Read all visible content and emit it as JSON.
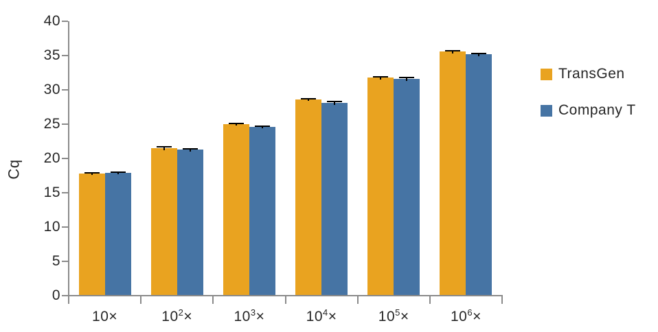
{
  "figure": {
    "background_color": "#ffffff",
    "axis_color": "#8a8a8a",
    "text_color": "#262626",
    "error_bar_color": "#000000"
  },
  "chart_data": {
    "type": "bar",
    "ylabel": "Cq",
    "ylim": [
      0,
      40
    ],
    "yticks": [
      0,
      5,
      10,
      15,
      20,
      25,
      30,
      35,
      40
    ],
    "grid": false,
    "legend_position": "right",
    "categories": [
      "10×",
      "10²×",
      "10³×",
      "10⁴×",
      "10⁵×",
      "10⁶×"
    ],
    "series": [
      {
        "name": "TransGen",
        "color": "#e9a320",
        "values": [
          17.7,
          21.4,
          24.9,
          28.5,
          31.7,
          35.5
        ],
        "errors": [
          0.15,
          0.3,
          0.2,
          0.2,
          0.25,
          0.25
        ]
      },
      {
        "name": "Company T",
        "color": "#4674a4",
        "values": [
          17.8,
          21.2,
          24.5,
          28.0,
          31.5,
          35.1
        ],
        "errors": [
          0.15,
          0.25,
          0.15,
          0.3,
          0.3,
          0.25
        ]
      }
    ]
  }
}
